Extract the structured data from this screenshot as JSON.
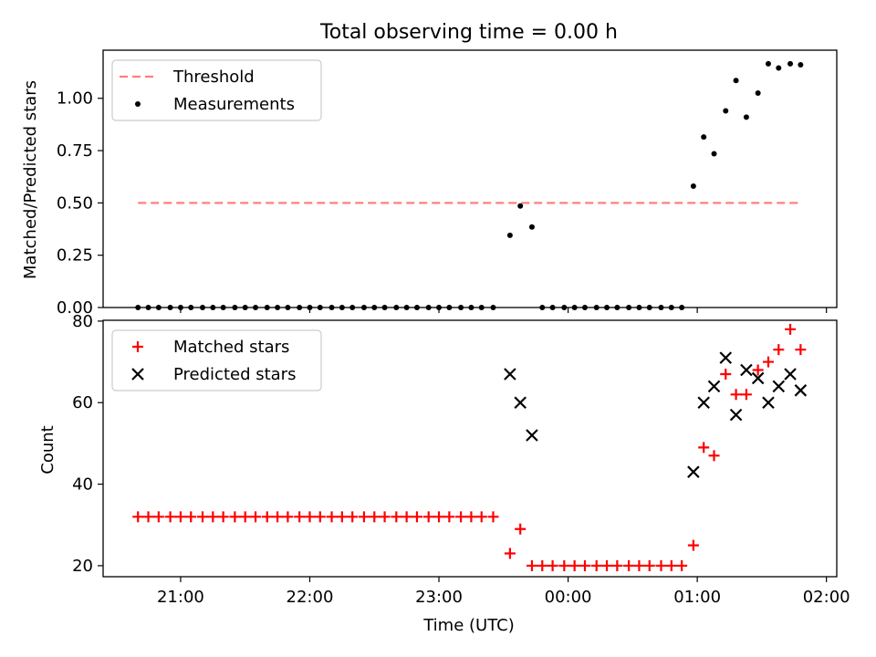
{
  "chart_data": {
    "title": "Total observing time = 0.00 h",
    "xlabel": "Time (UTC)",
    "x_unit": "hours UTC (values >= 24 are after midnight)",
    "xlim": [
      20.4,
      26.08
    ],
    "xticks": [
      {
        "value": 21,
        "label": "21:00"
      },
      {
        "value": 22,
        "label": "22:00"
      },
      {
        "value": 23,
        "label": "23:00"
      },
      {
        "value": 24,
        "label": "00:00"
      },
      {
        "value": 25,
        "label": "01:00"
      },
      {
        "value": 26,
        "label": "02:00"
      }
    ],
    "panels": [
      {
        "type": "scatter",
        "ylabel": "Matched/Predicted stars",
        "ylim": [
          0,
          1.23
        ],
        "yticks": [
          {
            "value": 0,
            "label": "0.00"
          },
          {
            "value": 0.25,
            "label": "0.25"
          },
          {
            "value": 0.5,
            "label": "0.50"
          },
          {
            "value": 0.75,
            "label": "0.75"
          },
          {
            "value": 1.0,
            "label": "1.00"
          }
        ],
        "legend_position": "upper-left",
        "series": [
          {
            "name": "Threshold",
            "kind": "line",
            "color": "#ff7f7f",
            "dash": true,
            "x": [
              20.67,
              25.8
            ],
            "y": [
              0.5,
              0.5
            ]
          },
          {
            "name": "Measurements",
            "kind": "point",
            "color": "#000000",
            "x": [
              20.67,
              20.75,
              20.83,
              20.92,
              21.0,
              21.08,
              21.17,
              21.25,
              21.33,
              21.42,
              21.5,
              21.58,
              21.67,
              21.75,
              21.83,
              21.92,
              22.0,
              22.08,
              22.17,
              22.25,
              22.33,
              22.42,
              22.5,
              22.58,
              22.67,
              22.75,
              22.83,
              22.92,
              23.0,
              23.08,
              23.17,
              23.25,
              23.33,
              23.42,
              23.55,
              23.63,
              23.72,
              23.8,
              23.88,
              23.97,
              24.05,
              24.13,
              24.22,
              24.3,
              24.38,
              24.47,
              24.55,
              24.63,
              24.72,
              24.8,
              24.88,
              24.97,
              25.05,
              25.13,
              25.22,
              25.3,
              25.38,
              25.47,
              25.55,
              25.63,
              25.72,
              25.8
            ],
            "y": [
              0,
              0,
              0,
              0,
              0,
              0,
              0,
              0,
              0,
              0,
              0,
              0,
              0,
              0,
              0,
              0,
              0,
              0,
              0,
              0,
              0,
              0,
              0,
              0,
              0,
              0,
              0,
              0,
              0,
              0,
              0,
              0,
              0,
              0,
              0.345,
              0.485,
              0.385,
              0,
              0,
              0,
              0,
              0,
              0,
              0,
              0,
              0,
              0,
              0,
              0,
              0,
              0,
              0.58,
              0.815,
              0.735,
              0.94,
              1.085,
              0.91,
              1.025,
              1.165,
              1.145,
              1.165,
              1.16
            ]
          }
        ]
      },
      {
        "type": "scatter",
        "ylabel": "Count",
        "ylim": [
          17.3,
          80.2
        ],
        "yticks": [
          {
            "value": 20,
            "label": "20"
          },
          {
            "value": 40,
            "label": "40"
          },
          {
            "value": 60,
            "label": "60"
          },
          {
            "value": 80,
            "label": "80"
          }
        ],
        "legend_position": "upper-left",
        "series": [
          {
            "name": "Matched stars",
            "kind": "plus",
            "color": "#ff0000",
            "x": [
              20.67,
              20.75,
              20.83,
              20.92,
              21.0,
              21.08,
              21.17,
              21.25,
              21.33,
              21.42,
              21.5,
              21.58,
              21.67,
              21.75,
              21.83,
              21.92,
              22.0,
              22.08,
              22.17,
              22.25,
              22.33,
              22.42,
              22.5,
              22.58,
              22.67,
              22.75,
              22.83,
              22.92,
              23.0,
              23.08,
              23.17,
              23.25,
              23.33,
              23.42,
              23.55,
              23.63,
              23.72,
              23.8,
              23.88,
              23.97,
              24.05,
              24.13,
              24.22,
              24.3,
              24.38,
              24.47,
              24.55,
              24.63,
              24.72,
              24.8,
              24.88,
              24.97,
              25.05,
              25.13,
              25.22,
              25.3,
              25.38,
              25.47,
              25.55,
              25.63,
              25.72,
              25.8
            ],
            "y": [
              32,
              32,
              32,
              32,
              32,
              32,
              32,
              32,
              32,
              32,
              32,
              32,
              32,
              32,
              32,
              32,
              32,
              32,
              32,
              32,
              32,
              32,
              32,
              32,
              32,
              32,
              32,
              32,
              32,
              32,
              32,
              32,
              32,
              32,
              23,
              29,
              20,
              20,
              20,
              20,
              20,
              20,
              20,
              20,
              20,
              20,
              20,
              20,
              20,
              20,
              20,
              25,
              49,
              47,
              67,
              62,
              62,
              68,
              70,
              73,
              78,
              73
            ]
          },
          {
            "name": "Predicted stars",
            "kind": "cross",
            "color": "#000000",
            "x": [
              23.55,
              23.63,
              23.72,
              24.97,
              25.05,
              25.13,
              25.22,
              25.3,
              25.38,
              25.47,
              25.55,
              25.63,
              25.72,
              25.8
            ],
            "y": [
              67,
              60,
              52,
              43,
              60,
              64,
              71,
              57,
              68,
              66,
              60,
              64,
              67,
              63
            ]
          }
        ]
      }
    ]
  }
}
